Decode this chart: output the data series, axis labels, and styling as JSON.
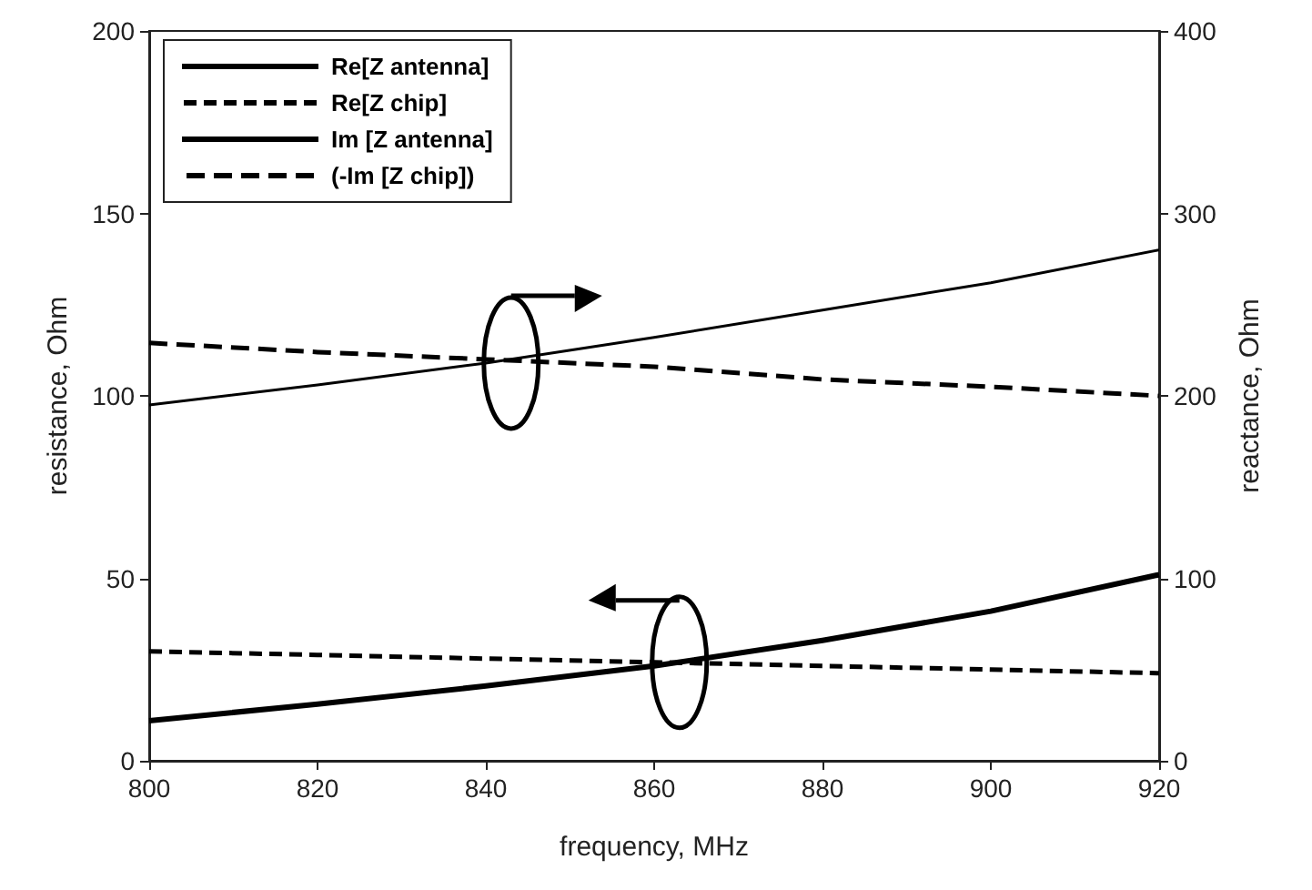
{
  "chart_data": {
    "type": "line",
    "xlabel": "frequency, MHz",
    "ylabel": "resistance, Ohm",
    "y2label": "reactance, Ohm",
    "x": [
      800,
      820,
      840,
      860,
      880,
      900,
      920
    ],
    "series": [
      {
        "name": "Re[Z antenna]",
        "color": "#000000",
        "line_style": "solid",
        "values": [
          11,
          15.5,
          20.5,
          26,
          33,
          41,
          51
        ]
      },
      {
        "name": "Re[Z chip]",
        "color": "#000000",
        "line_style": "dashed",
        "values": [
          30,
          29,
          28,
          27,
          26,
          25,
          24
        ]
      },
      {
        "name": "Im [Z antenna]",
        "color": "#000000",
        "line_style": "solid",
        "axis": "y2",
        "values": [
          195,
          206,
          218,
          232,
          247,
          262,
          280
        ]
      },
      {
        "name": "(-Im [Z chip])",
        "color": "#000000",
        "line_style": "dashed",
        "axis": "y2",
        "values": [
          229,
          224,
          220,
          216,
          209,
          205,
          200
        ]
      }
    ],
    "xlim": [
      800,
      920
    ],
    "xticks": [
      800,
      820,
      840,
      860,
      880,
      900,
      920
    ],
    "ylim": [
      0,
      200
    ],
    "yticks": [
      0,
      50,
      100,
      150,
      200
    ],
    "y2lim": [
      0,
      400
    ],
    "y2ticks": [
      0,
      100,
      200,
      300,
      400
    ],
    "grid": false,
    "legend": "top left",
    "marker": "none"
  }
}
